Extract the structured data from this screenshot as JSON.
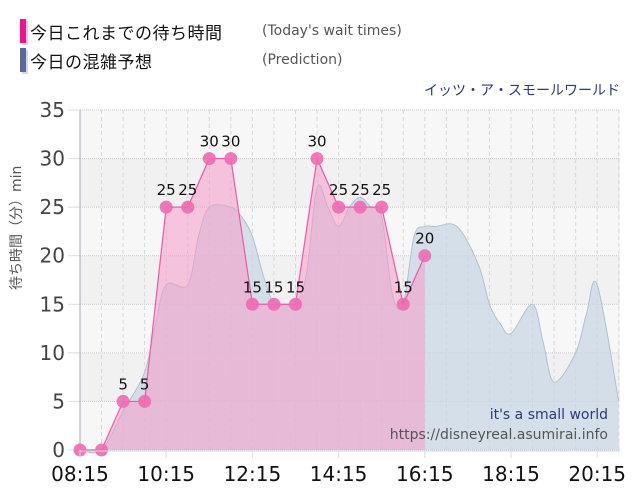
{
  "legend": {
    "items": [
      {
        "label_jp": "今日これまでの待ち時間",
        "label_en": "(Today's wait times)",
        "color": "#f0148c"
      },
      {
        "label_jp": "今日の混雑予想",
        "label_en": "(Prediction)",
        "color": "#5a6a9c"
      }
    ]
  },
  "ride_name": "イッツ・ア・スモールワールド",
  "watermark": {
    "title": "it's a small world",
    "url": "https://disneyreal.asumirai.info"
  },
  "axis": {
    "ylabel": "待ち時間（分）min"
  },
  "chart_data": {
    "type": "area",
    "title": "イッツ・ア・スモールワールド",
    "xlabel": "",
    "ylabel": "待ち時間（分）min",
    "ylim": [
      0,
      35
    ],
    "yticks": [
      0,
      5,
      10,
      15,
      20,
      25,
      30,
      35
    ],
    "xticks": [
      "08:15",
      "10:15",
      "12:15",
      "14:15",
      "16:15",
      "18:15",
      "20:15"
    ],
    "xlim": [
      "08:15",
      "21:00"
    ],
    "grid": true,
    "legend_position": "top-left",
    "series": [
      {
        "name": "今日これまでの待ち時間 (Today's wait times)",
        "color": "#f0148c",
        "style": "area-with-markers-and-labels",
        "x": [
          "08:15",
          "08:45",
          "09:15",
          "09:45",
          "10:15",
          "10:45",
          "11:15",
          "11:45",
          "12:15",
          "12:45",
          "13:15",
          "13:45",
          "14:15",
          "14:45",
          "15:15",
          "15:45",
          "16:15"
        ],
        "values": [
          0,
          0,
          5,
          5,
          25,
          25,
          30,
          30,
          15,
          15,
          15,
          30,
          25,
          25,
          25,
          15,
          20
        ]
      },
      {
        "name": "今日の混雑予想 (Prediction)",
        "color": "#a9bfd2",
        "style": "smooth-area",
        "x": [
          "08:15",
          "08:45",
          "09:15",
          "09:45",
          "10:00",
          "10:15",
          "10:45",
          "11:00",
          "11:15",
          "11:45",
          "12:00",
          "12:15",
          "12:30",
          "12:45",
          "13:00",
          "13:15",
          "13:30",
          "13:45",
          "14:00",
          "14:15",
          "14:30",
          "14:45",
          "15:00",
          "15:15",
          "15:30",
          "15:45",
          "16:00",
          "16:15",
          "16:30",
          "17:00",
          "17:30",
          "17:45",
          "18:00",
          "18:15",
          "18:45",
          "19:00",
          "19:15",
          "19:45",
          "20:00",
          "20:15",
          "20:45"
        ],
        "values": [
          0,
          0,
          4,
          8,
          13,
          17,
          17,
          22,
          25,
          25,
          24,
          22,
          18,
          15,
          15,
          15,
          18,
          27,
          25,
          23,
          25,
          26,
          25,
          24,
          16,
          15,
          22,
          23,
          23,
          23,
          19,
          15,
          13,
          12,
          15,
          11,
          7,
          10,
          14,
          17,
          5
        ]
      }
    ]
  }
}
